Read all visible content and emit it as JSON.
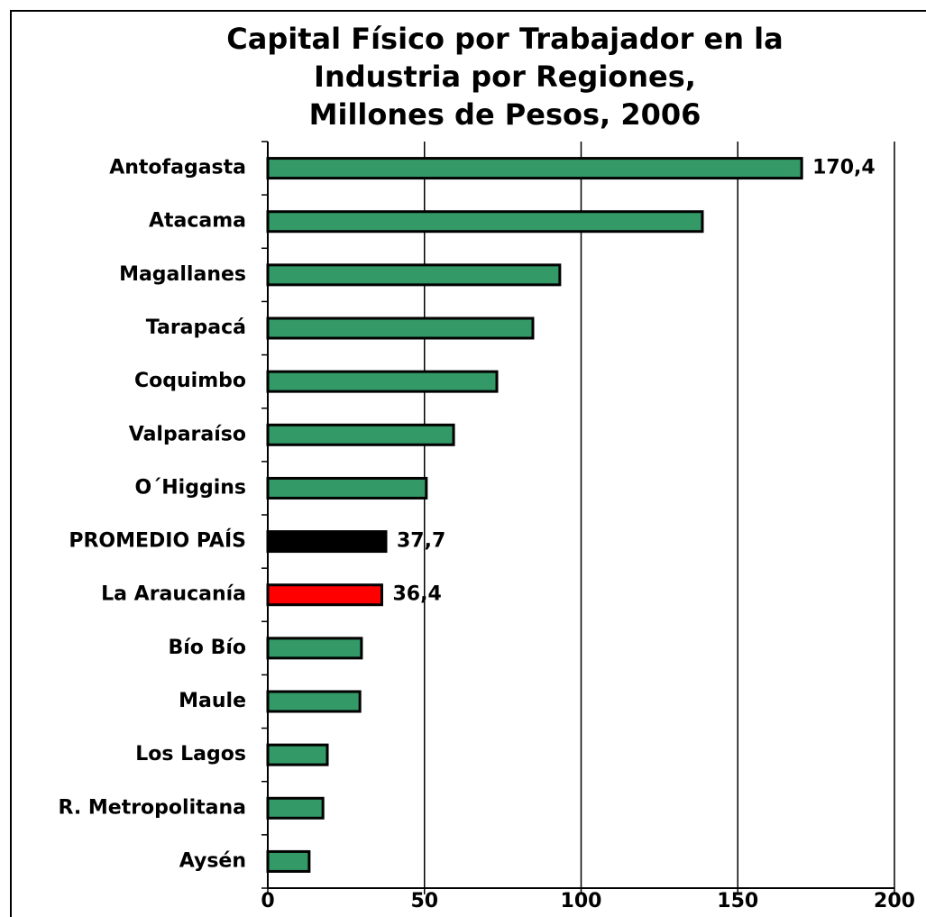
{
  "chart_data": {
    "type": "bar",
    "orientation": "horizontal",
    "title": [
      "Capital Físico por Trabajador en la",
      "Industria por Regiones,",
      "Millones de Pesos, 2006"
    ],
    "categories": [
      "Antofagasta",
      "Atacama",
      "Magallanes",
      "Tarapacá",
      "Coquimbo",
      "Valparaíso",
      "O´Higgins",
      "PROMEDIO PAÍS",
      "La Araucanía",
      "Bío Bío",
      "Maule",
      "Los Lagos",
      "R. Metropolitana",
      "Aysén"
    ],
    "values": [
      170.4,
      138.7,
      93.2,
      84.6,
      73.1,
      59.3,
      50.6,
      37.7,
      36.4,
      29.9,
      29.4,
      19.0,
      17.6,
      13.2
    ],
    "value_labels": [
      "170,4",
      null,
      null,
      null,
      null,
      null,
      null,
      "37,7",
      "36,4",
      null,
      null,
      null,
      null,
      null
    ],
    "colors": [
      "#339966",
      "#339966",
      "#339966",
      "#339966",
      "#339966",
      "#339966",
      "#339966",
      "#000000",
      "#ff0000",
      "#339966",
      "#339966",
      "#339966",
      "#339966",
      "#339966"
    ],
    "xlim": [
      0,
      200
    ],
    "xticks": [
      0,
      50,
      100,
      150,
      200
    ],
    "grid": true
  }
}
